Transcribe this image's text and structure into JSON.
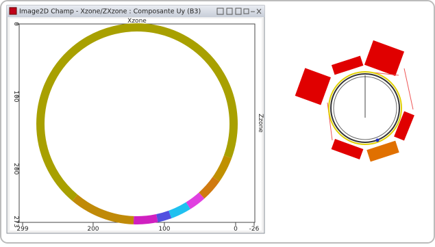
{
  "window": {
    "title": "Image2D Champ - Xzone/ZXzone : Composante Uy  (B3)"
  },
  "plot": {
    "x_label": "Xzone",
    "y_label": "Zzone",
    "xlim": [
      299,
      -26
    ],
    "xticks": [
      299,
      200,
      100,
      0,
      -26
    ],
    "ylim": [
      0,
      273
    ],
    "yticks": [
      0,
      100,
      200,
      273
    ]
  }
}
